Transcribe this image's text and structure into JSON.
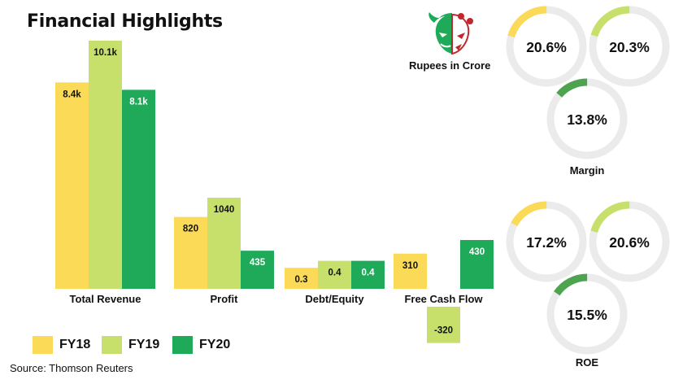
{
  "title": "Financial Highlights",
  "unit_label": "Rupees in Crore",
  "source": "Source: Thomson Reuters",
  "logo_icon": "bull-bear-icon",
  "colors": {
    "FY18": "#fbda57",
    "FY19": "#c7e06b",
    "FY20": "#1faa59",
    "ring_track": "#ebebeb",
    "ring_dark": "#4ea34f"
  },
  "legend": [
    {
      "label": "FY18",
      "color": "#fbda57"
    },
    {
      "label": "FY19",
      "color": "#c7e06b"
    },
    {
      "label": "FY20",
      "color": "#1faa59"
    }
  ],
  "chart_data": [
    {
      "type": "bar",
      "title": "Financial Highlights",
      "categories": [
        "Total Revenue",
        "Profit",
        "Debt/Equity",
        "Free Cash Flow"
      ],
      "series": [
        {
          "name": "FY18",
          "values": [
            8400,
            820,
            0.3,
            310
          ],
          "labels": [
            "8.4k",
            "820",
            "0.3",
            "310"
          ]
        },
        {
          "name": "FY19",
          "values": [
            10100,
            1040,
            0.4,
            -320
          ],
          "labels": [
            "10.1k",
            "1040",
            "0.4",
            "-320"
          ]
        },
        {
          "name": "FY20",
          "values": [
            8100,
            435,
            0.4,
            430
          ],
          "labels": [
            "8.1k",
            "435",
            "0.4",
            "430"
          ]
        }
      ],
      "legend_position": "bottom-left",
      "grid": false
    },
    {
      "type": "pie",
      "title": "Margin",
      "series": [
        {
          "name": "FY18",
          "value": 20.6,
          "label": "20.6%"
        },
        {
          "name": "FY19",
          "value": 20.3,
          "label": "20.3%"
        },
        {
          "name": "FY20",
          "value": 13.8,
          "label": "13.8%"
        }
      ]
    },
    {
      "type": "pie",
      "title": "ROE",
      "series": [
        {
          "name": "FY18",
          "value": 17.2,
          "label": "17.2%"
        },
        {
          "name": "FY19",
          "value": 20.6,
          "label": "20.6%"
        },
        {
          "name": "FY20",
          "value": 15.5,
          "label": "15.5%"
        }
      ]
    }
  ]
}
